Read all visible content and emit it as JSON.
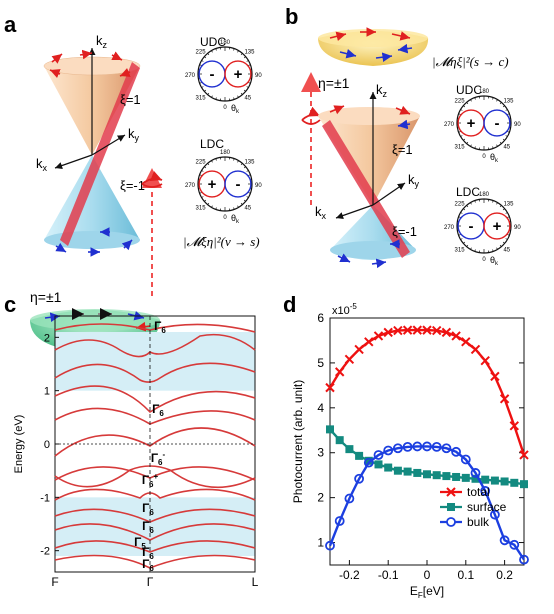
{
  "panel_a": {
    "label": "a",
    "axes": {
      "kz": "k",
      "kz_sub": "z",
      "ky": "k",
      "ky_sub": "y",
      "kx": "k",
      "kx_sub": "x"
    },
    "xi_upper": "ξ=1",
    "xi_lower": "ξ=-1",
    "eta": "η=±1",
    "udc": "UDC",
    "ldc": "LDC",
    "udc_signs": [
      "-",
      "+"
    ],
    "ldc_signs": [
      "+",
      "-"
    ],
    "formula": "|𝓜ξη|²(v → s)"
  },
  "panel_b": {
    "label": "b",
    "axes": {
      "kz": "k",
      "kz_sub": "z",
      "ky": "k",
      "ky_sub": "y",
      "kx": "k",
      "kx_sub": "x"
    },
    "xi_upper": "ξ=1",
    "xi_lower": "ξ=-1",
    "eta": "η=±1",
    "udc": "UDC",
    "ldc": "LDC",
    "udc_signs": [
      "+",
      "-"
    ],
    "ldc_signs": [
      "-",
      "+"
    ],
    "formula": "|𝓜ηξ|²(s → c)"
  },
  "polar": {
    "ticks": [
      "180",
      "225",
      "135",
      "270",
      "90",
      "315",
      "45",
      "0"
    ],
    "theta_label": "θ",
    "theta_sub": "k"
  },
  "colors": {
    "red": "#e02020",
    "blue": "#2030d0",
    "cone_upper": "#f3c49b",
    "cone_lower": "#a8dcee",
    "plane": "#e23c4c",
    "green_disc": "#49c48c",
    "yellow_disc": "#f3d36d",
    "light_band": "#d5eef6",
    "band_line": "#d63a3a",
    "total": "#ee1111",
    "surface": "#138a80",
    "bulk": "#1c3fe0"
  },
  "panel_c": {
    "label": "c",
    "ylabel": "Energy (eV)",
    "yticks": [
      "2",
      "1",
      "0",
      "-1",
      "-2"
    ],
    "xticks": [
      "F",
      "Γ",
      "L"
    ],
    "band_labels": [
      "Γ",
      "Γ",
      "Γ",
      "Γ",
      "Γ",
      "Γ",
      "Γ",
      "Γ",
      "Γ"
    ],
    "band_label_subs": [
      "6",
      "6",
      "6",
      "6",
      "6",
      "6",
      "5",
      "6",
      "6"
    ],
    "band_label_sups": [
      "",
      "",
      "-",
      "+",
      "",
      "",
      "",
      "",
      ""
    ],
    "cyan_bands": [
      [
        1.0,
        2.1
      ],
      [
        -2.1,
        -1.0
      ]
    ]
  },
  "panel_d": {
    "label": "d",
    "chart_data": {
      "type": "line",
      "xlabel": "E",
      "xlabel_sub": "F",
      "xlabel_unit": "[eV]",
      "ylabel": "Photocurrent (arb. unit)",
      "exponent": "x10",
      "exponent_power": "-5",
      "xlim": [
        -0.25,
        0.25
      ],
      "ylim": [
        0.5,
        6
      ],
      "xticks": [
        "-0.2",
        "-0.1",
        "0",
        "0.1",
        "0.2"
      ],
      "xtick_values": [
        -0.2,
        -0.1,
        0,
        0.1,
        0.2
      ],
      "yticks": [
        "1",
        "2",
        "3",
        "4",
        "5",
        "6"
      ],
      "ytick_values": [
        1,
        2,
        3,
        4,
        5,
        6
      ],
      "x": [
        -0.25,
        -0.225,
        -0.2,
        -0.175,
        -0.15,
        -0.125,
        -0.1,
        -0.075,
        -0.05,
        -0.025,
        0,
        0.025,
        0.05,
        0.075,
        0.1,
        0.125,
        0.15,
        0.175,
        0.2,
        0.225,
        0.25
      ],
      "series": [
        {
          "name": "total",
          "marker": "x",
          "color": "#ee1111",
          "values": [
            4.45,
            4.8,
            5.08,
            5.3,
            5.47,
            5.6,
            5.68,
            5.72,
            5.73,
            5.73,
            5.73,
            5.72,
            5.68,
            5.6,
            5.47,
            5.3,
            5.05,
            4.7,
            4.2,
            3.6,
            2.95
          ]
        },
        {
          "name": "surface",
          "marker": "square",
          "color": "#138a80",
          "values": [
            3.52,
            3.28,
            3.08,
            2.93,
            2.82,
            2.74,
            2.67,
            2.6,
            2.58,
            2.55,
            2.52,
            2.5,
            2.48,
            2.46,
            2.44,
            2.42,
            2.4,
            2.38,
            2.36,
            2.33,
            2.3
          ]
        },
        {
          "name": "bulk",
          "marker": "circle",
          "color": "#1c3fe0",
          "values": [
            0.93,
            1.48,
            1.98,
            2.42,
            2.78,
            2.95,
            3.05,
            3.1,
            3.13,
            3.14,
            3.14,
            3.13,
            3.1,
            3.02,
            2.85,
            2.55,
            2.15,
            1.62,
            1.05,
            0.95,
            0.62
          ]
        }
      ],
      "legend_position": "bottom-right",
      "grid": false
    }
  }
}
